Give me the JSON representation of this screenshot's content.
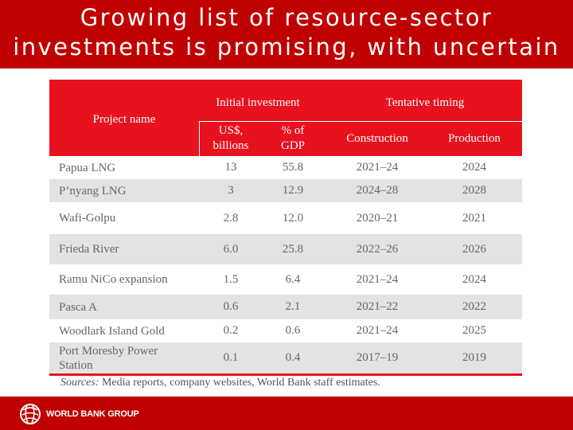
{
  "slide": {
    "title_line1": "Growing list of resource-sector",
    "title_line2": "investments is promising, with uncertain"
  },
  "table": {
    "headers": {
      "project_name": "Project name",
      "initial_investment": "Initial investment",
      "tentative_timing": "Tentative timing",
      "usd_line1": "US$,",
      "usd_line2": "billions",
      "gdp_line1": "% of",
      "gdp_line2": "GDP",
      "construction": "Construction",
      "production": "Production"
    },
    "rows": [
      {
        "name": "Papua LNG",
        "usd": "13",
        "gdp": "55.8",
        "construction": "2021–24",
        "production": "2024"
      },
      {
        "name": "P’nyang LNG",
        "usd": "3",
        "gdp": "12.9",
        "construction": "2024–28",
        "production": "2028"
      },
      {
        "name": "Wafi-Golpu",
        "usd": "2.8",
        "gdp": "12.0",
        "construction": "2020–21",
        "production": "2021"
      },
      {
        "name": "Frieda River",
        "usd": "6.0",
        "gdp": "25.8",
        "construction": "2022–26",
        "production": "2026"
      },
      {
        "name": "Ramu NiCo expansion",
        "usd": "1.5",
        "gdp": "6.4",
        "construction": "2021–24",
        "production": "2024"
      },
      {
        "name": "Pasca A",
        "usd": "0.6",
        "gdp": "2.1",
        "construction": "2021–22",
        "production": "2022"
      },
      {
        "name": "Woodlark Island Gold",
        "usd": "0.2",
        "gdp": "0.6",
        "construction": "2021–24",
        "production": "2025"
      },
      {
        "name": "Port Moresby Power Station",
        "usd": "0.1",
        "gdp": "0.4",
        "construction": "2017–19",
        "production": "2019"
      }
    ]
  },
  "source": {
    "label": "Sources:",
    "text": " Media reports, company websites, World Bank staff estimates."
  },
  "footer": {
    "logo_text": "WORLD BANK GROUP"
  },
  "colors": {
    "title_bar": "#c00000",
    "header_red": "#e8111e",
    "row_shade": "#e3e3e3"
  }
}
